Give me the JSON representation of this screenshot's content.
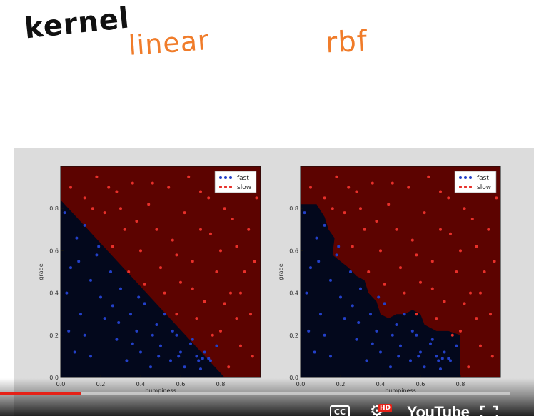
{
  "annotations": {
    "kernel": "kernel",
    "linear": "linear",
    "rbf": "rbf"
  },
  "colors": {
    "fast_region": "#03081c",
    "slow_region": "#5c0300",
    "fast_points": "#2340c8",
    "slow_points": "#e8302a",
    "accent_orange": "#f07c2a",
    "progress_red": "#e62117"
  },
  "chart_data": [
    {
      "type": "scatter",
      "title": "linear",
      "xlabel": "bumpiness",
      "ylabel": "grade",
      "xlim": [
        0.0,
        1.0
      ],
      "ylim": [
        0.0,
        1.0
      ],
      "x_ticks": [
        "0.0",
        "0.2",
        "0.4",
        "0.6",
        "0.8"
      ],
      "y_ticks": [
        "0.0",
        "0.2",
        "0.4",
        "0.6",
        "0.8"
      ],
      "legend": [
        "fast",
        "slow"
      ],
      "legend_position": "top-right",
      "decision_boundary": [
        [
          0.0,
          0.84
        ],
        [
          0.82,
          0.0
        ]
      ],
      "series": [
        {
          "name": "fast",
          "points": [
            [
              0.02,
              0.78
            ],
            [
              0.05,
              0.52
            ],
            [
              0.08,
              0.66
            ],
            [
              0.1,
              0.3
            ],
            [
              0.12,
              0.72
            ],
            [
              0.15,
              0.46
            ],
            [
              0.18,
              0.58
            ],
            [
              0.04,
              0.22
            ],
            [
              0.07,
              0.12
            ],
            [
              0.2,
              0.38
            ],
            [
              0.22,
              0.28
            ],
            [
              0.25,
              0.5
            ],
            [
              0.28,
              0.18
            ],
            [
              0.3,
              0.42
            ],
            [
              0.33,
              0.08
            ],
            [
              0.35,
              0.3
            ],
            [
              0.38,
              0.22
            ],
            [
              0.4,
              0.12
            ],
            [
              0.42,
              0.35
            ],
            [
              0.45,
              0.05
            ],
            [
              0.48,
              0.25
            ],
            [
              0.5,
              0.15
            ],
            [
              0.52,
              0.3
            ],
            [
              0.55,
              0.08
            ],
            [
              0.58,
              0.2
            ],
            [
              0.6,
              0.12
            ],
            [
              0.62,
              0.05
            ],
            [
              0.65,
              0.16
            ],
            [
              0.68,
              0.1
            ],
            [
              0.7,
              0.04
            ],
            [
              0.72,
              0.12
            ],
            [
              0.75,
              0.08
            ],
            [
              0.78,
              0.15
            ],
            [
              0.15,
              0.1
            ],
            [
              0.12,
              0.2
            ],
            [
              0.26,
              0.34
            ],
            [
              0.36,
              0.16
            ],
            [
              0.46,
              0.2
            ],
            [
              0.56,
              0.22
            ],
            [
              0.66,
              0.18
            ],
            [
              0.03,
              0.4
            ],
            [
              0.09,
              0.55
            ],
            [
              0.19,
              0.62
            ],
            [
              0.29,
              0.26
            ],
            [
              0.39,
              0.38
            ],
            [
              0.49,
              0.1
            ],
            [
              0.59,
              0.1
            ],
            [
              0.69,
              0.08
            ],
            [
              0.74,
              0.09
            ],
            [
              0.71,
              0.09
            ]
          ]
        },
        {
          "name": "slow",
          "points": [
            [
              0.05,
              0.9
            ],
            [
              0.12,
              0.85
            ],
            [
              0.18,
              0.95
            ],
            [
              0.22,
              0.78
            ],
            [
              0.28,
              0.88
            ],
            [
              0.32,
              0.7
            ],
            [
              0.36,
              0.92
            ],
            [
              0.4,
              0.6
            ],
            [
              0.44,
              0.82
            ],
            [
              0.48,
              0.7
            ],
            [
              0.5,
              0.52
            ],
            [
              0.54,
              0.9
            ],
            [
              0.56,
              0.65
            ],
            [
              0.6,
              0.45
            ],
            [
              0.62,
              0.78
            ],
            [
              0.66,
              0.55
            ],
            [
              0.7,
              0.88
            ],
            [
              0.72,
              0.36
            ],
            [
              0.75,
              0.68
            ],
            [
              0.78,
              0.5
            ],
            [
              0.8,
              0.22
            ],
            [
              0.82,
              0.8
            ],
            [
              0.85,
              0.4
            ],
            [
              0.88,
              0.62
            ],
            [
              0.9,
              0.15
            ],
            [
              0.92,
              0.92
            ],
            [
              0.95,
              0.3
            ],
            [
              0.97,
              0.55
            ],
            [
              0.26,
              0.62
            ],
            [
              0.34,
              0.5
            ],
            [
              0.42,
              0.44
            ],
            [
              0.46,
              0.92
            ],
            [
              0.52,
              0.4
            ],
            [
              0.58,
              0.3
            ],
            [
              0.64,
              0.95
            ],
            [
              0.68,
              0.28
            ],
            [
              0.74,
              0.85
            ],
            [
              0.8,
              0.6
            ],
            [
              0.86,
              0.75
            ],
            [
              0.9,
              0.4
            ],
            [
              0.94,
              0.7
            ],
            [
              0.96,
              0.1
            ],
            [
              0.98,
              0.85
            ],
            [
              0.84,
              0.05
            ],
            [
              0.88,
              0.28
            ],
            [
              0.92,
              0.5
            ],
            [
              0.38,
              0.74
            ],
            [
              0.3,
              0.8
            ],
            [
              0.24,
              0.9
            ],
            [
              0.16,
              0.8
            ],
            [
              0.58,
              0.58
            ],
            [
              0.66,
              0.42
            ],
            [
              0.76,
              0.2
            ],
            [
              0.82,
              0.35
            ],
            [
              0.7,
              0.7
            ]
          ]
        }
      ]
    },
    {
      "type": "scatter",
      "title": "rbf",
      "xlabel": "bumpiness",
      "ylabel": "grade",
      "xlim": [
        0.0,
        1.0
      ],
      "ylim": [
        0.0,
        1.0
      ],
      "x_ticks": [
        "0.0",
        "0.2",
        "0.4",
        "0.6",
        "0.8"
      ],
      "y_ticks": [
        "0.0",
        "0.2",
        "0.4",
        "0.6",
        "0.8"
      ],
      "legend": [
        "fast",
        "slow"
      ],
      "legend_position": "top-right",
      "decision_boundary": [
        [
          0.0,
          0.82
        ],
        [
          0.08,
          0.82
        ],
        [
          0.12,
          0.76
        ],
        [
          0.14,
          0.7
        ],
        [
          0.17,
          0.66
        ],
        [
          0.16,
          0.58
        ],
        [
          0.2,
          0.55
        ],
        [
          0.24,
          0.52
        ],
        [
          0.28,
          0.48
        ],
        [
          0.32,
          0.46
        ],
        [
          0.34,
          0.4
        ],
        [
          0.38,
          0.36
        ],
        [
          0.4,
          0.3
        ],
        [
          0.44,
          0.28
        ],
        [
          0.48,
          0.3
        ],
        [
          0.52,
          0.3
        ],
        [
          0.56,
          0.32
        ],
        [
          0.6,
          0.3
        ],
        [
          0.62,
          0.25
        ],
        [
          0.68,
          0.22
        ],
        [
          0.74,
          0.22
        ],
        [
          0.8,
          0.2
        ],
        [
          0.8,
          0.0
        ]
      ],
      "series": [
        {
          "name": "fast",
          "points": [
            [
              0.02,
              0.78
            ],
            [
              0.05,
              0.52
            ],
            [
              0.08,
              0.66
            ],
            [
              0.1,
              0.3
            ],
            [
              0.12,
              0.72
            ],
            [
              0.15,
              0.46
            ],
            [
              0.18,
              0.58
            ],
            [
              0.04,
              0.22
            ],
            [
              0.07,
              0.12
            ],
            [
              0.2,
              0.38
            ],
            [
              0.22,
              0.28
            ],
            [
              0.25,
              0.5
            ],
            [
              0.28,
              0.18
            ],
            [
              0.3,
              0.42
            ],
            [
              0.33,
              0.08
            ],
            [
              0.35,
              0.3
            ],
            [
              0.38,
              0.22
            ],
            [
              0.4,
              0.12
            ],
            [
              0.42,
              0.35
            ],
            [
              0.45,
              0.05
            ],
            [
              0.48,
              0.25
            ],
            [
              0.5,
              0.15
            ],
            [
              0.52,
              0.3
            ],
            [
              0.55,
              0.08
            ],
            [
              0.58,
              0.2
            ],
            [
              0.6,
              0.12
            ],
            [
              0.62,
              0.05
            ],
            [
              0.65,
              0.16
            ],
            [
              0.68,
              0.1
            ],
            [
              0.7,
              0.04
            ],
            [
              0.72,
              0.12
            ],
            [
              0.75,
              0.08
            ],
            [
              0.78,
              0.15
            ],
            [
              0.15,
              0.1
            ],
            [
              0.12,
              0.2
            ],
            [
              0.26,
              0.34
            ],
            [
              0.36,
              0.16
            ],
            [
              0.46,
              0.2
            ],
            [
              0.56,
              0.22
            ],
            [
              0.66,
              0.18
            ],
            [
              0.03,
              0.4
            ],
            [
              0.09,
              0.55
            ],
            [
              0.19,
              0.62
            ],
            [
              0.29,
              0.26
            ],
            [
              0.39,
              0.38
            ],
            [
              0.49,
              0.1
            ],
            [
              0.59,
              0.1
            ],
            [
              0.69,
              0.08
            ],
            [
              0.74,
              0.09
            ],
            [
              0.71,
              0.09
            ]
          ]
        },
        {
          "name": "slow",
          "points": [
            [
              0.05,
              0.9
            ],
            [
              0.12,
              0.85
            ],
            [
              0.18,
              0.95
            ],
            [
              0.22,
              0.78
            ],
            [
              0.28,
              0.88
            ],
            [
              0.32,
              0.7
            ],
            [
              0.36,
              0.92
            ],
            [
              0.4,
              0.6
            ],
            [
              0.44,
              0.82
            ],
            [
              0.48,
              0.7
            ],
            [
              0.5,
              0.52
            ],
            [
              0.54,
              0.9
            ],
            [
              0.56,
              0.65
            ],
            [
              0.6,
              0.45
            ],
            [
              0.62,
              0.78
            ],
            [
              0.66,
              0.55
            ],
            [
              0.7,
              0.88
            ],
            [
              0.72,
              0.36
            ],
            [
              0.75,
              0.68
            ],
            [
              0.78,
              0.5
            ],
            [
              0.8,
              0.22
            ],
            [
              0.82,
              0.8
            ],
            [
              0.85,
              0.4
            ],
            [
              0.88,
              0.62
            ],
            [
              0.9,
              0.15
            ],
            [
              0.92,
              0.92
            ],
            [
              0.95,
              0.3
            ],
            [
              0.97,
              0.55
            ],
            [
              0.26,
              0.62
            ],
            [
              0.34,
              0.5
            ],
            [
              0.42,
              0.44
            ],
            [
              0.46,
              0.92
            ],
            [
              0.52,
              0.4
            ],
            [
              0.58,
              0.3
            ],
            [
              0.64,
              0.95
            ],
            [
              0.68,
              0.28
            ],
            [
              0.74,
              0.85
            ],
            [
              0.8,
              0.6
            ],
            [
              0.86,
              0.75
            ],
            [
              0.9,
              0.4
            ],
            [
              0.94,
              0.7
            ],
            [
              0.96,
              0.1
            ],
            [
              0.98,
              0.85
            ],
            [
              0.84,
              0.05
            ],
            [
              0.88,
              0.28
            ],
            [
              0.92,
              0.5
            ],
            [
              0.38,
              0.74
            ],
            [
              0.3,
              0.8
            ],
            [
              0.24,
              0.9
            ],
            [
              0.16,
              0.8
            ],
            [
              0.58,
              0.58
            ],
            [
              0.66,
              0.42
            ],
            [
              0.76,
              0.2
            ],
            [
              0.82,
              0.35
            ],
            [
              0.7,
              0.7
            ]
          ]
        }
      ]
    }
  ],
  "player": {
    "cc_label": "CC",
    "hd_badge": "HD",
    "logo": "YouTube",
    "progress_fraction": 0.16,
    "icons": [
      "closed-captions-icon",
      "settings-gear-icon",
      "youtube-logo",
      "fullscreen-icon"
    ]
  }
}
